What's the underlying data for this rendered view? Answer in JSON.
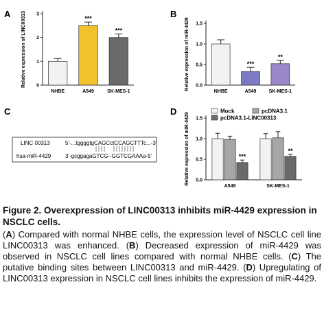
{
  "chart_data": [
    {
      "type": "bar",
      "panel": "A",
      "y_label": "Relative expression of LINC00313",
      "categories": [
        "NHBE",
        "A549",
        "SK-MES-1"
      ],
      "values": [
        1.0,
        2.5,
        2.0
      ],
      "errors": [
        0.12,
        0.15,
        0.15
      ],
      "significance": [
        null,
        "***",
        "***"
      ],
      "colors": [
        "#f2f2f2",
        "#f2c12e",
        "#6a6a6a"
      ],
      "ylim": [
        0,
        3
      ],
      "yticks": [
        0,
        1,
        2,
        3
      ]
    },
    {
      "type": "bar",
      "panel": "B",
      "y_label": "Relative expression of miR-4429",
      "categories": [
        "NHBE",
        "A549",
        "SK-MES-1"
      ],
      "values": [
        1.0,
        0.33,
        0.52
      ],
      "errors": [
        0.1,
        0.1,
        0.08
      ],
      "significance": [
        null,
        "***",
        "**"
      ],
      "colors": [
        "#f2f2f2",
        "#7b7bc4",
        "#9a86c8"
      ],
      "ylim": [
        0,
        1.5
      ],
      "yticks": [
        {
          "value": 0,
          "label": "0.0"
        },
        0.5,
        {
          "value": 1,
          "label": "1.0"
        },
        1.5
      ]
    },
    {
      "type": "grouped-bar",
      "panel": "D",
      "y_label": "Relative expression of miR-4429",
      "categories": [
        "A549",
        "SK-MES-1"
      ],
      "series": [
        {
          "name": "Mock",
          "color": "#f2f2f2",
          "values": [
            1.0,
            1.0
          ],
          "errors": [
            0.13,
            0.12
          ],
          "significance": [
            null,
            null
          ]
        },
        {
          "name": "pcDNA3.1",
          "color": "#a6a6a6",
          "values": [
            0.98,
            1.02
          ],
          "errors": [
            0.08,
            0.15
          ],
          "significance": [
            null,
            null
          ]
        },
        {
          "name": "pcDNA3.1-LINC00313",
          "color": "#6a6a6a",
          "values": [
            0.42,
            0.57
          ],
          "errors": [
            0.06,
            0.05
          ],
          "significance": [
            "***",
            "**"
          ]
        }
      ],
      "ylim": [
        0,
        1.5
      ],
      "yticks": [
        {
          "value": 0,
          "label": "0.0"
        },
        0.5,
        {
          "value": 1,
          "label": "1.0"
        },
        1.5
      ]
    }
  ],
  "diagram": {
    "panel": "C",
    "rows": [
      {
        "label": "LINC 00313",
        "sequence": "5'-...tggggtgCAGCctCCAGCTTTc...-3'"
      },
      {
        "label": "hsa-miR-4429",
        "sequence": "3'-gcggagaGTCG--GGTCGAAAa-5'"
      }
    ]
  },
  "caption": {
    "title": "Figure 2. Overexpression of LINC00313 inhibits miR-4429 expression in NSCLC cells.",
    "segments": [
      "(",
      "A",
      ") Compared with normal NHBE cells, the expression level of NSCLC cell line LINC00313 was enhanced. (",
      "B",
      ") Decreased expression of miR-4429 was observed in NSCLC cell lines compared with normal NHBE cells. (",
      "C",
      ") The putative binding sites between LINC00313 and miR-4429. (",
      "D",
      ") Upregulating of LINC00313 expression in NSCLC cell lines inhibits the expression of miR-4429."
    ]
  }
}
